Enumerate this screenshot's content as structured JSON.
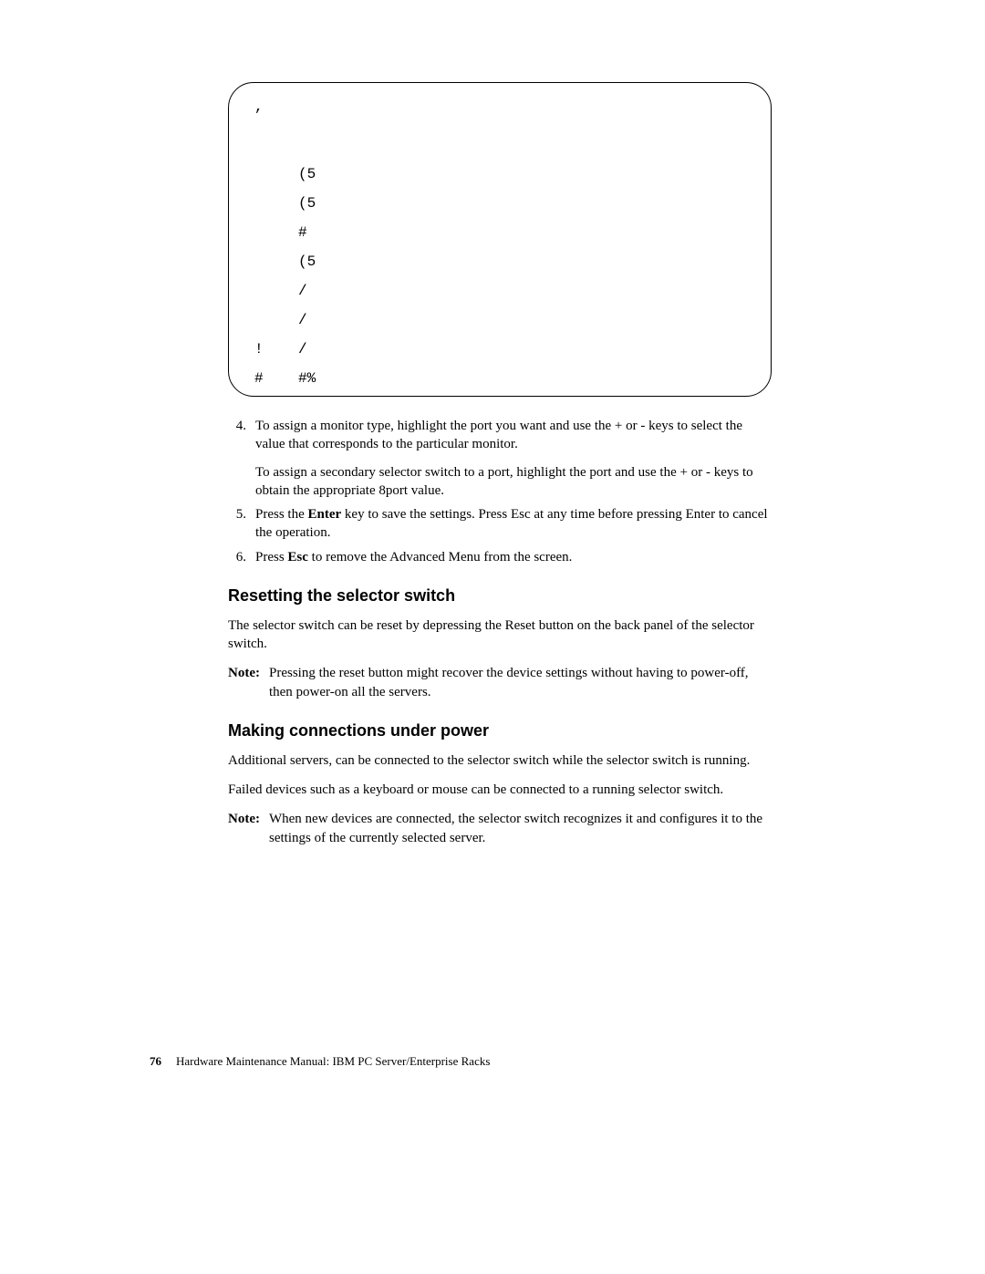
{
  "screen": {
    "top_mark": ",",
    "rows": [
      {
        "a": "",
        "b": "(5"
      },
      {
        "a": "",
        "b": "(5"
      },
      {
        "a": "",
        "b": "#"
      },
      {
        "a": "",
        "b": "(5"
      },
      {
        "a": "",
        "b": "/"
      },
      {
        "a": "",
        "b": "/"
      },
      {
        "a": "!",
        "b": "/"
      },
      {
        "a": "#",
        "b": "#%"
      }
    ]
  },
  "list": {
    "items": [
      {
        "num": "4.",
        "paras": [
          "To assign a monitor type, highlight the port you want and use the + or - keys to select the value that corresponds to the particular monitor.",
          "To assign a secondary selector switch to a port, highlight the port and use the + or - keys to obtain the appropriate 8port value."
        ]
      },
      {
        "num": "5.",
        "pre": "Press the ",
        "bold": "Enter",
        "post": " key to save the settings.  Press Esc at any time before pressing Enter to cancel the operation."
      },
      {
        "num": "6.",
        "pre": "Press ",
        "bold": "Esc",
        "post": " to remove the Advanced Menu from the screen."
      }
    ]
  },
  "section1": {
    "heading": "Resetting the selector switch",
    "p1": "The selector switch can be reset by depressing the Reset button on the back panel of the selector switch.",
    "note_label": "Note:",
    "note_body": "Pressing the reset button might recover the device settings without having to power-off, then power-on all the servers."
  },
  "section2": {
    "heading": "Making connections under power",
    "p1": "Additional servers, can be connected to the selector switch while the selector switch is running.",
    "p2": "Failed devices such as a keyboard or mouse can be connected to a running selector switch.",
    "note_label": "Note:",
    "note_body": "When new devices are connected, the selector switch recognizes it and configures it to the settings of the currently selected server."
  },
  "footer": {
    "page_num": "76",
    "text": "Hardware Maintenance Manual: IBM PC Server/Enterprise Racks"
  }
}
